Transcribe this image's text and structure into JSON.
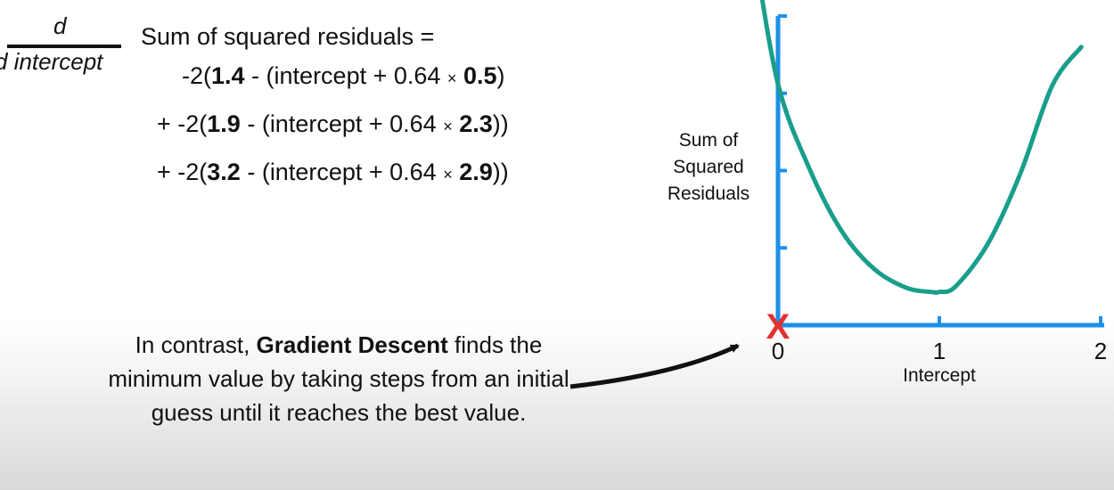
{
  "equation": {
    "numerator": "d",
    "denominator": "d intercept",
    "lead": "Sum of squared residuals =",
    "terms": [
      {
        "prefix": "-2(",
        "observed": "1.4",
        "middle": " - (intercept + 0.64 ",
        "times": "×",
        "x": "0.5",
        "suffix": ")"
      },
      {
        "prefix": "+ -2(",
        "observed": "1.9",
        "middle": " - (intercept + 0.64 ",
        "times": "×",
        "x": "2.3",
        "suffix": "))"
      },
      {
        "prefix": "+ -2(",
        "observed": "3.2",
        "middle": " - (intercept + 0.64 ",
        "times": "×",
        "x": "2.9",
        "suffix": "))"
      }
    ]
  },
  "caption": {
    "before": "In contrast, ",
    "bold": "Gradient Descent",
    "after": " finds the minimum value by taking steps from an initial guess until it reaches the best value."
  },
  "chart_data": {
    "type": "line",
    "xlabel": "Intercept",
    "ylabel": "Sum of Squared Residuals",
    "ylabel_lines": [
      "Sum of",
      "Squared",
      "Residuals"
    ],
    "xlim": [
      0,
      2
    ],
    "ylim": [
      0,
      4
    ],
    "xticks": [
      "0",
      "1",
      "2"
    ],
    "series": [
      {
        "x": [
          -0.15,
          0.0,
          0.2,
          0.4,
          0.6,
          0.8,
          0.95,
          1.0,
          1.1,
          1.3,
          1.5,
          1.7,
          1.88
        ],
        "y": [
          4.9,
          3.12,
          2.0,
          1.2,
          0.72,
          0.48,
          0.43,
          0.43,
          0.5,
          1.05,
          1.95,
          3.1,
          3.6
        ]
      }
    ],
    "marker": {
      "label": "X",
      "x": 0,
      "y": 0
    },
    "colors": {
      "axis": "#1e90e8",
      "curve": "#1a9e8c",
      "marker": "#e53030"
    }
  }
}
